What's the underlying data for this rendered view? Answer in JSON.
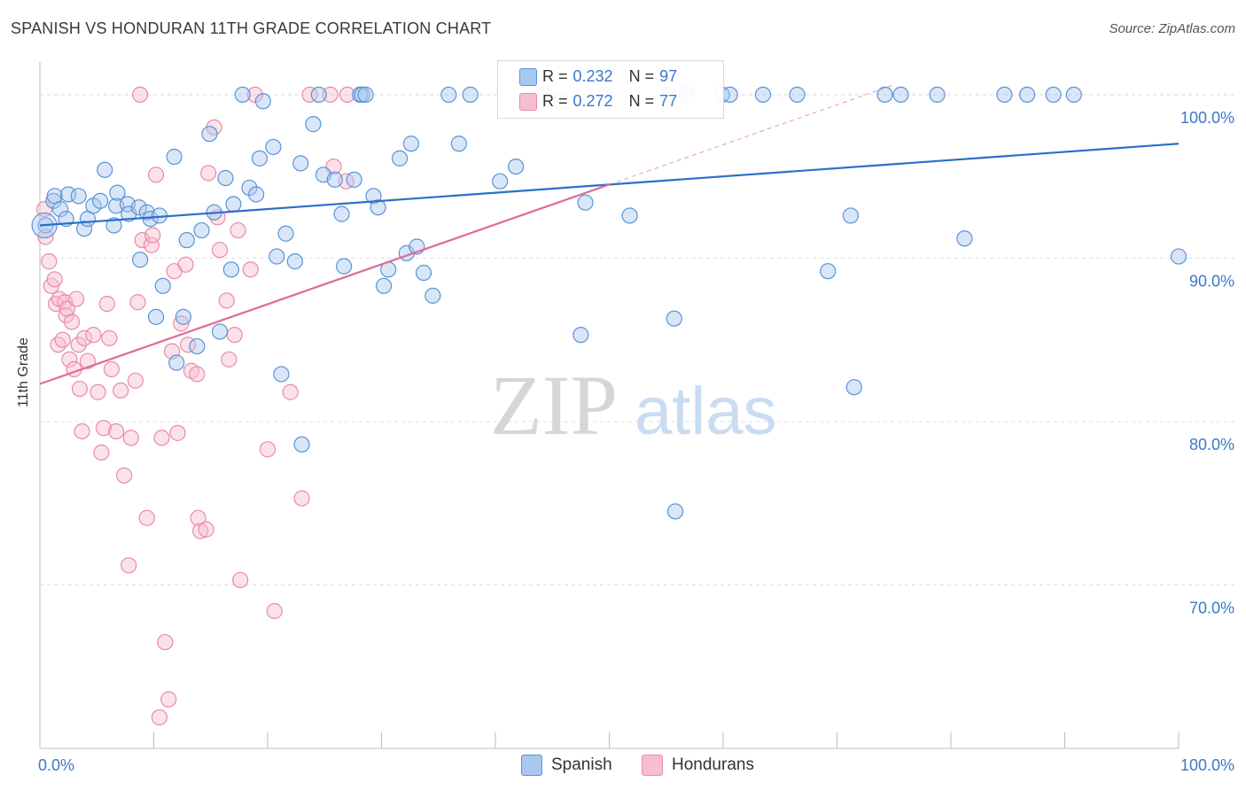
{
  "title": "SPANISH VS HONDURAN 11TH GRADE CORRELATION CHART",
  "source": "Source: ZipAtlas.com",
  "watermark": {
    "zip": "ZIP",
    "atlas": "atlas"
  },
  "legend": {
    "series1": {
      "r_label": "R =",
      "r_value": "0.232",
      "n_label": "N =",
      "n_value": "97"
    },
    "series2": {
      "r_label": "R =",
      "r_value": "0.272",
      "n_label": "N =",
      "n_value": "77"
    }
  },
  "bottom_legend": {
    "series1": "Spanish",
    "series2": "Hondurans"
  },
  "colors": {
    "spanish_fill": "#a9c8ef",
    "spanish_stroke": "#5b93d6",
    "spanish_line": "#2a6fc9",
    "honduran_fill": "#f6bfcf",
    "honduran_stroke": "#ea8aa8",
    "honduran_line": "#e06b95",
    "axis_text": "#3a78c9",
    "grid": "#dddddd"
  },
  "chart_data": {
    "type": "scatter",
    "title": "SPANISH VS HONDURAN 11TH GRADE CORRELATION CHART",
    "xlabel": "",
    "ylabel": "11th Grade",
    "xlim": [
      0,
      100
    ],
    "ylim": [
      60,
      102
    ],
    "x_tick_labels": [
      "0.0%",
      "100.0%"
    ],
    "y_ticks": [
      70,
      80,
      90,
      100
    ],
    "y_tick_labels": [
      "70.0%",
      "80.0%",
      "90.0%",
      "100.0%"
    ],
    "series": [
      {
        "name": "Spanish",
        "R": 0.232,
        "N": 97,
        "trend": {
          "x": [
            0,
            100
          ],
          "y": [
            92.0,
            97.0
          ]
        },
        "points": [
          [
            0.5,
            92
          ],
          [
            1.2,
            93.5
          ],
          [
            1.3,
            93.8
          ],
          [
            1.8,
            93
          ],
          [
            2.3,
            92.4
          ],
          [
            2.5,
            93.9
          ],
          [
            3.4,
            93.8
          ],
          [
            3.9,
            91.8
          ],
          [
            4.2,
            92.4
          ],
          [
            4.7,
            93.2
          ],
          [
            5.3,
            93.5
          ],
          [
            5.7,
            95.4
          ],
          [
            6.5,
            92
          ],
          [
            6.7,
            93.2
          ],
          [
            6.8,
            94
          ],
          [
            7.7,
            93.3
          ],
          [
            7.8,
            92.7
          ],
          [
            8.7,
            93.1
          ],
          [
            8.8,
            89.9
          ],
          [
            9.4,
            92.8
          ],
          [
            9.7,
            92.4
          ],
          [
            10.2,
            86.4
          ],
          [
            10.5,
            92.6
          ],
          [
            10.8,
            88.3
          ],
          [
            11.8,
            96.2
          ],
          [
            12,
            83.6
          ],
          [
            12.6,
            86.4
          ],
          [
            12.9,
            91.1
          ],
          [
            13.8,
            84.6
          ],
          [
            14.2,
            91.7
          ],
          [
            14.9,
            97.6
          ],
          [
            15.3,
            92.8
          ],
          [
            15.8,
            85.5
          ],
          [
            16.3,
            94.9
          ],
          [
            16.8,
            89.3
          ],
          [
            17.0,
            93.3
          ],
          [
            17.8,
            100
          ],
          [
            18.4,
            94.3
          ],
          [
            19.0,
            93.9
          ],
          [
            19.3,
            96.1
          ],
          [
            19.6,
            99.6
          ],
          [
            20.5,
            96.8
          ],
          [
            20.8,
            90.1
          ],
          [
            21.2,
            82.9
          ],
          [
            21.6,
            91.5
          ],
          [
            22.4,
            89.8
          ],
          [
            22.9,
            95.8
          ],
          [
            23.0,
            78.6
          ],
          [
            24.0,
            98.2
          ],
          [
            24.5,
            100
          ],
          [
            24.9,
            95.1
          ],
          [
            25.9,
            94.8
          ],
          [
            26.5,
            92.7
          ],
          [
            26.7,
            89.5
          ],
          [
            27.6,
            94.8
          ],
          [
            28.1,
            100
          ],
          [
            28.3,
            100
          ],
          [
            28.6,
            100
          ],
          [
            29.3,
            93.8
          ],
          [
            29.7,
            93.1
          ],
          [
            30.2,
            88.3
          ],
          [
            30.6,
            89.3
          ],
          [
            31.6,
            96.1
          ],
          [
            32.2,
            90.3
          ],
          [
            32.6,
            97
          ],
          [
            33.1,
            90.7
          ],
          [
            33.7,
            89.1
          ],
          [
            34.5,
            87.7
          ],
          [
            35.9,
            100
          ],
          [
            36.8,
            97
          ],
          [
            37.8,
            100
          ],
          [
            40.4,
            94.7
          ],
          [
            41.8,
            95.6
          ],
          [
            44.2,
            100
          ],
          [
            45.8,
            99.6
          ],
          [
            47.5,
            85.3
          ],
          [
            47.9,
            93.4
          ],
          [
            49.7,
            100
          ],
          [
            51.8,
            92.6
          ],
          [
            55.2,
            100
          ],
          [
            55.7,
            86.3
          ],
          [
            55.8,
            74.5
          ],
          [
            56.8,
            100
          ],
          [
            59.9,
            100
          ],
          [
            60.6,
            100
          ],
          [
            63.5,
            100
          ],
          [
            66.5,
            100
          ],
          [
            69.2,
            89.2
          ],
          [
            71.2,
            92.6
          ],
          [
            71.5,
            82.1
          ],
          [
            74.2,
            100
          ],
          [
            75.6,
            100
          ],
          [
            78.8,
            100
          ],
          [
            81.2,
            91.2
          ],
          [
            84.7,
            100
          ],
          [
            86.7,
            100
          ],
          [
            89,
            100
          ],
          [
            90.8,
            100
          ],
          [
            100,
            90.1
          ]
        ]
      },
      {
        "name": "Hondurans",
        "R": 0.272,
        "N": 77,
        "trend": {
          "x": [
            0,
            50
          ],
          "y": [
            82.3,
            94.5
          ]
        },
        "trend_extension": {
          "x": [
            50,
            75
          ],
          "y": [
            94.5,
            100.6
          ]
        },
        "points": [
          [
            0.4,
            93
          ],
          [
            0.5,
            91.3
          ],
          [
            0.8,
            89.8
          ],
          [
            1.0,
            88.3
          ],
          [
            1.3,
            88.7
          ],
          [
            1.4,
            87.2
          ],
          [
            1.6,
            84.7
          ],
          [
            1.7,
            87.5
          ],
          [
            2.0,
            85
          ],
          [
            2.2,
            87.3
          ],
          [
            2.3,
            86.5
          ],
          [
            2.4,
            86.9
          ],
          [
            2.6,
            83.8
          ],
          [
            2.8,
            86.1
          ],
          [
            3.0,
            83.2
          ],
          [
            3.2,
            87.5
          ],
          [
            3.4,
            84.7
          ],
          [
            3.5,
            82
          ],
          [
            3.7,
            79.4
          ],
          [
            3.9,
            85.1
          ],
          [
            4.2,
            83.7
          ],
          [
            4.7,
            85.3
          ],
          [
            5.1,
            81.8
          ],
          [
            5.4,
            78.1
          ],
          [
            5.6,
            79.6
          ],
          [
            5.9,
            87.2
          ],
          [
            6.1,
            85.1
          ],
          [
            6.3,
            83.2
          ],
          [
            6.7,
            79.4
          ],
          [
            7.1,
            81.9
          ],
          [
            7.4,
            76.7
          ],
          [
            7.8,
            71.2
          ],
          [
            8.0,
            79
          ],
          [
            8.4,
            82.5
          ],
          [
            8.6,
            87.3
          ],
          [
            8.8,
            100
          ],
          [
            9.0,
            91.1
          ],
          [
            9.4,
            74.1
          ],
          [
            9.8,
            90.8
          ],
          [
            9.9,
            91.4
          ],
          [
            10.2,
            95.1
          ],
          [
            10.7,
            79
          ],
          [
            11.0,
            66.5
          ],
          [
            11.3,
            63
          ],
          [
            11.6,
            84.3
          ],
          [
            11.8,
            89.2
          ],
          [
            12.1,
            79.3
          ],
          [
            12.4,
            86
          ],
          [
            12.8,
            89.6
          ],
          [
            13.0,
            84.7
          ],
          [
            13.3,
            83.1
          ],
          [
            13.8,
            82.9
          ],
          [
            13.9,
            74.1
          ],
          [
            14.1,
            73.3
          ],
          [
            14.6,
            73.4
          ],
          [
            14.8,
            95.2
          ],
          [
            15.3,
            98
          ],
          [
            15.6,
            92.5
          ],
          [
            15.8,
            90.5
          ],
          [
            16.4,
            87.4
          ],
          [
            16.6,
            83.8
          ],
          [
            17.1,
            85.3
          ],
          [
            17.4,
            91.7
          ],
          [
            17.6,
            70.3
          ],
          [
            18.5,
            89.3
          ],
          [
            18.9,
            100
          ],
          [
            20.0,
            78.3
          ],
          [
            20.6,
            68.4
          ],
          [
            22.0,
            81.8
          ],
          [
            23.0,
            75.3
          ],
          [
            23.7,
            100
          ],
          [
            25.5,
            100
          ],
          [
            25.8,
            95.6
          ],
          [
            26.9,
            94.7
          ],
          [
            27.0,
            100
          ],
          [
            10.5,
            61.9
          ],
          [
            44.5,
            100
          ]
        ]
      }
    ]
  }
}
